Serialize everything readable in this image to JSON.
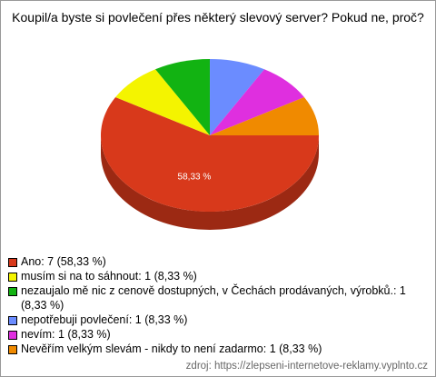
{
  "chart_data": {
    "type": "pie",
    "title": "Koupil/a byste si povlečení přes některý slevový server? Pokud ne, proč?",
    "categories": [
      "Ano: 7 (58,33 %)",
      "musím si na to sáhnout: 1 (8,33 %)",
      "nezaujalo mě nic z cenově dostupných, v Čechách prodávaných, výrobků.: 1 (8,33 %)",
      "nepotřebuji povlečení: 1 (8,33 %)",
      "nevím: 1 (8,33 %)",
      "Nevěřím velkým slevám - nikdy to není zadarmo: 1 (8,33 %)"
    ],
    "values": [
      58.33,
      8.33,
      8.33,
      8.33,
      8.33,
      8.33
    ],
    "value_labels": [
      "58,33 %",
      null,
      null,
      null,
      null,
      null
    ],
    "colors": [
      "#d8391b",
      "#f4f400",
      "#12b312",
      "#6b8cff",
      "#df2fdf",
      "#f08a00"
    ],
    "source": "zdroj: https://zlepseni-internetove-reklamy.vyplnto.cz"
  }
}
